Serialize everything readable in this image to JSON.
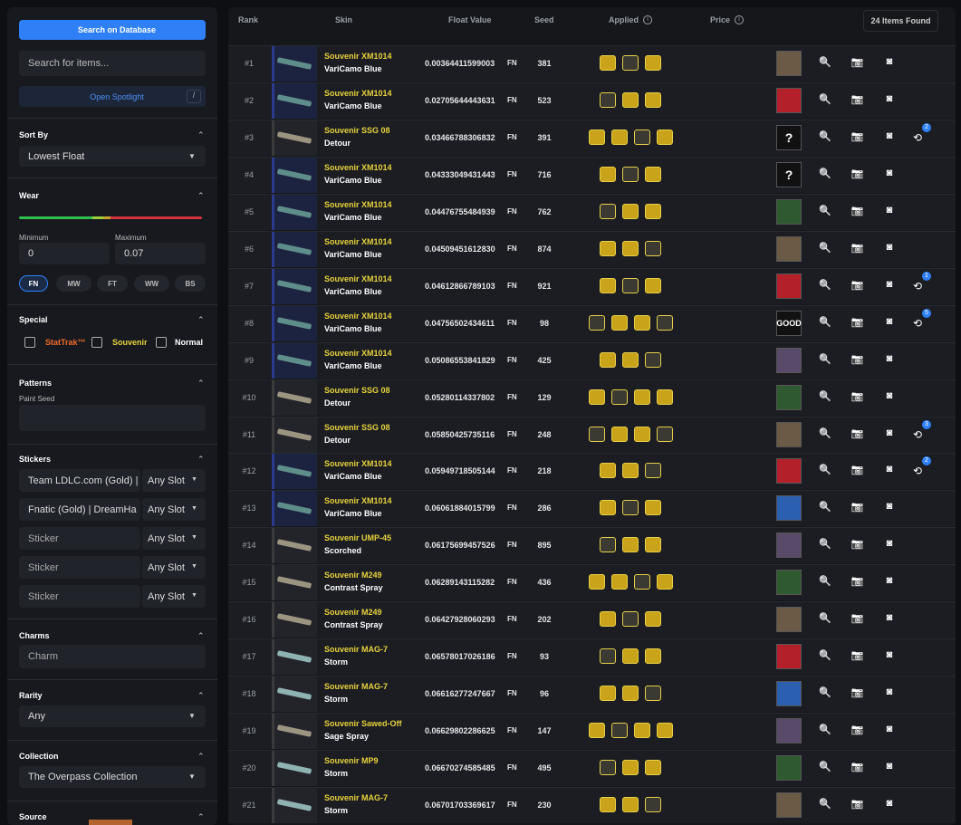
{
  "sidebar": {
    "search_button": "Search on Database",
    "search_placeholder": "Search for items...",
    "spotlight": "Open Spotlight",
    "spotlight_key": "/",
    "sort_by": {
      "label": "Sort By",
      "value": "Lowest Float"
    },
    "wear": {
      "label": "Wear",
      "min_label": "Minimum",
      "min": "0",
      "max_label": "Maximum",
      "max": "0.07",
      "buttons": [
        "FN",
        "MW",
        "FT",
        "WW",
        "BS"
      ]
    },
    "special": {
      "label": "Special",
      "options": [
        "StatTrak™",
        "Souvenir",
        "Normal"
      ]
    },
    "patterns": {
      "label": "Patterns",
      "sublabel": "Paint Seed"
    },
    "stickers": {
      "label": "Stickers",
      "rows": [
        {
          "name": "Team LDLC.com (Gold) |",
          "slot": "Any Slot"
        },
        {
          "name": "Fnatic (Gold) | DreamHa",
          "slot": "Any Slot"
        },
        {
          "name": "Sticker",
          "slot": "Any Slot"
        },
        {
          "name": "Sticker",
          "slot": "Any Slot"
        },
        {
          "name": "Sticker",
          "slot": "Any Slot"
        }
      ]
    },
    "charms": {
      "label": "Charms",
      "placeholder": "Charm"
    },
    "rarity": {
      "label": "Rarity",
      "value": "Any"
    },
    "collection": {
      "label": "Collection",
      "value": "The Overpass Collection"
    },
    "source": {
      "label": "Source"
    }
  },
  "table": {
    "headers": [
      "Rank",
      "Skin",
      "Float Value",
      "Seed",
      "Applied",
      "Price"
    ],
    "count": "24 Items Found",
    "rows": [
      {
        "rank": "#1",
        "weapon": "Souvenir XM1014",
        "skin": "VariCamo Blue",
        "float": "0.00364411599003",
        "wear": "FN",
        "seed": "381"
      },
      {
        "rank": "#2",
        "weapon": "Souvenir XM1014",
        "skin": "VariCamo Blue",
        "float": "0.02705644443631",
        "wear": "FN",
        "seed": "523"
      },
      {
        "rank": "#3",
        "weapon": "Souvenir SSG 08",
        "skin": "Detour",
        "float": "0.03466788306832",
        "wear": "FN",
        "seed": "391",
        "avatar_text": "?",
        "history": "2"
      },
      {
        "rank": "#4",
        "weapon": "Souvenir XM1014",
        "skin": "VariCamo Blue",
        "float": "0.04333049431443",
        "wear": "FN",
        "seed": "716",
        "avatar_text": "?"
      },
      {
        "rank": "#5",
        "weapon": "Souvenir XM1014",
        "skin": "VariCamo Blue",
        "float": "0.04476755484939",
        "wear": "FN",
        "seed": "762"
      },
      {
        "rank": "#6",
        "weapon": "Souvenir XM1014",
        "skin": "VariCamo Blue",
        "float": "0.04509451612830",
        "wear": "FN",
        "seed": "874"
      },
      {
        "rank": "#7",
        "weapon": "Souvenir XM1014",
        "skin": "VariCamo Blue",
        "float": "0.04612866789103",
        "wear": "FN",
        "seed": "921",
        "history": "1"
      },
      {
        "rank": "#8",
        "weapon": "Souvenir XM1014",
        "skin": "VariCamo Blue",
        "float": "0.04756502434611",
        "wear": "FN",
        "seed": "98",
        "avatar_text": "GOOD",
        "history": "5"
      },
      {
        "rank": "#9",
        "weapon": "Souvenir XM1014",
        "skin": "VariCamo Blue",
        "float": "0.05086553841829",
        "wear": "FN",
        "seed": "425"
      },
      {
        "rank": "#10",
        "weapon": "Souvenir SSG 08",
        "skin": "Detour",
        "float": "0.05280114337802",
        "wear": "FN",
        "seed": "129"
      },
      {
        "rank": "#11",
        "weapon": "Souvenir SSG 08",
        "skin": "Detour",
        "float": "0.05850425735116",
        "wear": "FN",
        "seed": "248",
        "history": "3"
      },
      {
        "rank": "#12",
        "weapon": "Souvenir XM1014",
        "skin": "VariCamo Blue",
        "float": "0.05949718505144",
        "wear": "FN",
        "seed": "218",
        "history": "2"
      },
      {
        "rank": "#13",
        "weapon": "Souvenir XM1014",
        "skin": "VariCamo Blue",
        "float": "0.06061884015799",
        "wear": "FN",
        "seed": "286"
      },
      {
        "rank": "#14",
        "weapon": "Souvenir UMP-45",
        "skin": "Scorched",
        "float": "0.06175699457526",
        "wear": "FN",
        "seed": "895"
      },
      {
        "rank": "#15",
        "weapon": "Souvenir M249",
        "skin": "Contrast Spray",
        "float": "0.06289143115282",
        "wear": "FN",
        "seed": "436"
      },
      {
        "rank": "#16",
        "weapon": "Souvenir M249",
        "skin": "Contrast Spray",
        "float": "0.06427928060293",
        "wear": "FN",
        "seed": "202"
      },
      {
        "rank": "#17",
        "weapon": "Souvenir MAG-7",
        "skin": "Storm",
        "float": "0.06578017026186",
        "wear": "FN",
        "seed": "93"
      },
      {
        "rank": "#18",
        "weapon": "Souvenir MAG-7",
        "skin": "Storm",
        "float": "0.06616277247667",
        "wear": "FN",
        "seed": "96"
      },
      {
        "rank": "#19",
        "weapon": "Souvenir Sawed-Off",
        "skin": "Sage Spray",
        "float": "0.06629802286625",
        "wear": "FN",
        "seed": "147"
      },
      {
        "rank": "#20",
        "weapon": "Souvenir MP9",
        "skin": "Storm",
        "float": "0.06670274585485",
        "wear": "FN",
        "seed": "495"
      },
      {
        "rank": "#21",
        "weapon": "Souvenir MAG-7",
        "skin": "Storm",
        "float": "0.06701703369617",
        "wear": "FN",
        "seed": "230"
      }
    ]
  }
}
